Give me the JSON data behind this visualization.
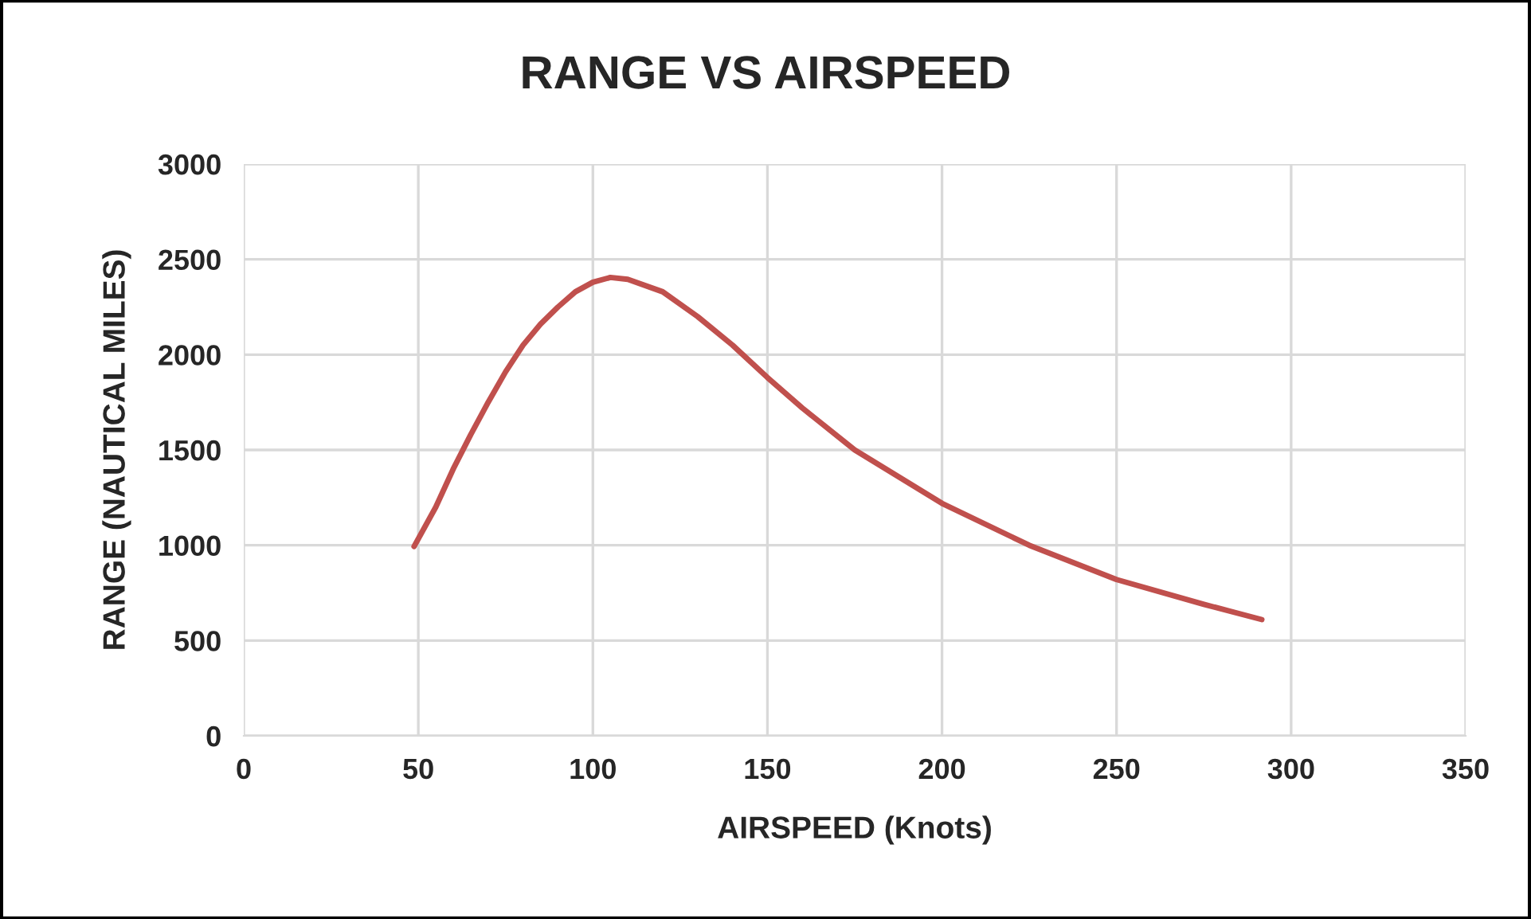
{
  "chart_data": {
    "type": "line",
    "title": "RANGE VS AIRSPEED",
    "xlabel": "AIRSPEED (Knots)",
    "ylabel": "RANGE (NAUTICAL MILES)",
    "x": [
      48.8,
      55,
      60,
      65,
      70,
      75,
      80,
      85,
      90,
      95,
      100,
      105,
      110,
      120,
      130,
      140,
      150,
      160,
      175,
      200,
      225,
      250,
      275,
      291.6
    ],
    "series": [
      {
        "color": "#c0504d",
        "values": [
          994,
          1200,
          1400,
          1580,
          1750,
          1910,
          2050,
          2160,
          2250,
          2330,
          2380,
          2405,
          2395,
          2330,
          2200,
          2050,
          1880,
          1720,
          1500,
          1220,
          1000,
          820,
          690,
          610
        ]
      }
    ],
    "xlim": [
      0,
      350
    ],
    "xticks": [
      0,
      50,
      100,
      150,
      200,
      250,
      300,
      350
    ],
    "ylim": [
      0,
      3000
    ],
    "yticks": [
      0,
      500,
      1000,
      1500,
      2000,
      2500,
      3000
    ],
    "grid": true,
    "marker": "none",
    "line_style": "solid",
    "legend": false
  }
}
